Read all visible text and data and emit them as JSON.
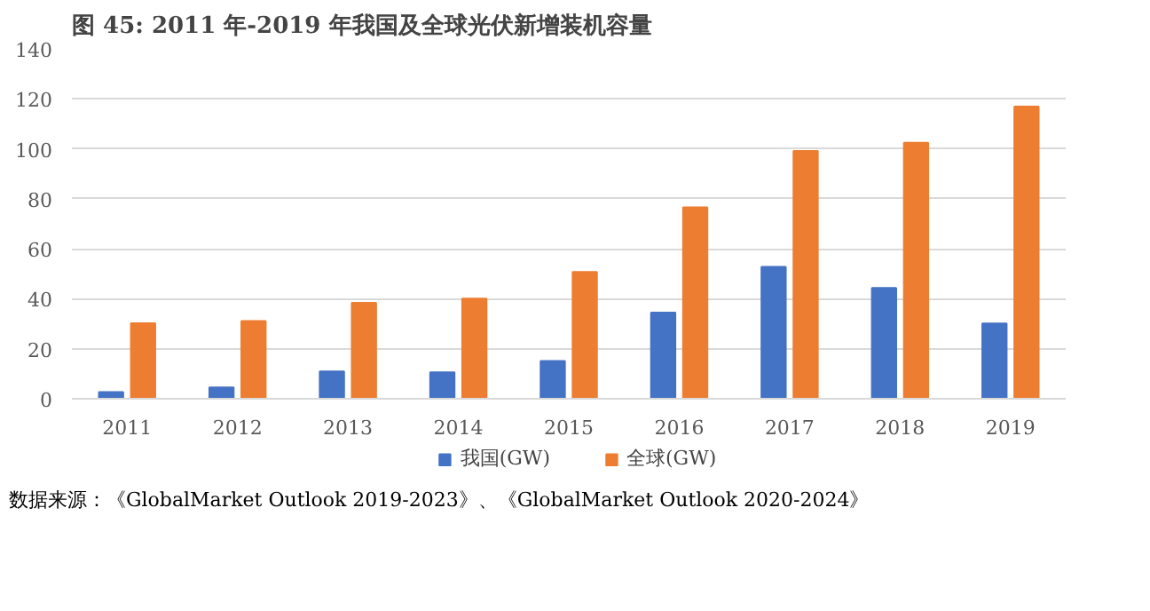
{
  "chart_data": {
    "type": "bar",
    "title": "图  45:  2011 年-2019 年我国及全球光伏新增装机容量",
    "categories": [
      "2011",
      "2012",
      "2013",
      "2014",
      "2015",
      "2016",
      "2017",
      "2018",
      "2019"
    ],
    "series": [
      {
        "name": "我国(GW)",
        "color": "#4472c4",
        "values": [
          2.7,
          4.5,
          10.9,
          10.6,
          15.1,
          34.5,
          52.8,
          44.3,
          30.1
        ]
      },
      {
        "name": "全球(GW)",
        "color": "#ed7d31",
        "values": [
          30.2,
          31.1,
          38.4,
          40.1,
          50.7,
          76.6,
          99.1,
          102.4,
          116.9
        ]
      }
    ],
    "ylim": [
      0,
      140
    ],
    "yticks": [
      0,
      20,
      40,
      60,
      80,
      100,
      120,
      140
    ],
    "grid": "y",
    "legend": "bottom",
    "annotations": [
      "数据来源：《GlobalMarket Outlook 2019-2023》、《GlobalMarket Outlook 2020-2024》"
    ]
  }
}
